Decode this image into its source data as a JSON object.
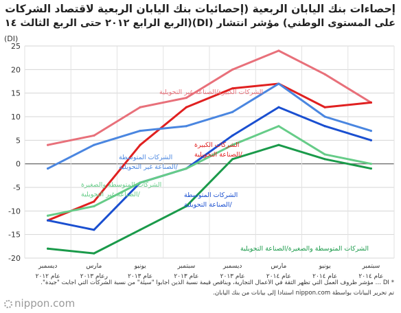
{
  "titles": {
    "line1": "إحصاءات بنك اليابان الربعية (إحصائيات بنك اليابان الربعية لاقتصاد الشركات",
    "line2": "على المستوى الوطني) مؤشر انتشار (DI)(الربع الرابع ٢٠١٢ حتى الربع الثالث ٢٠١٤)"
  },
  "footnotes": {
    "note1": "* DI … مؤشر ظروف العمل التي تظهر الثقة في الأعمال التجارية، وبناقص قيمة نسبة الذين أجابوا \"سيئة\" من نسبة الشركات التي أجابت \"جيدة\".",
    "note2": "تم تحرير البيانات بواسطة nippon.com استنادا إلى بيانات من بنك اليابان."
  },
  "logo": {
    "text": "nippon.com"
  },
  "chart_data": {
    "type": "line",
    "ylabel": "(DI)",
    "ylim": [
      -20,
      25
    ],
    "yticks": [
      -20,
      -15,
      -10,
      -5,
      0,
      5,
      10,
      15,
      20,
      25
    ],
    "grid": true,
    "categories": [
      {
        "month": "ديسمبر",
        "year": "عام ٢٠١٢"
      },
      {
        "month": "مارس",
        "year": "رعام ٢٠١٣"
      },
      {
        "month": "يونيو",
        "year": "عام ٢٠١٣"
      },
      {
        "month": "سبتمبر",
        "year": "عام ٢٠١٣"
      },
      {
        "month": "ديسمبر",
        "year": "عام ٢٠١٣"
      },
      {
        "month": "مارس",
        "year": "عام ٢٠١٤"
      },
      {
        "month": "يونيو",
        "year": "عام ٢٠١٤"
      },
      {
        "month": "سبتمبر",
        "year": "عام ٢٠١٤"
      }
    ],
    "series": [
      {
        "name": "الشركات الكبيرة/الصناعة غير التحويلية",
        "values": [
          4,
          6,
          12,
          14,
          20,
          24,
          19,
          13
        ],
        "color": "#e8707a",
        "label_lines": [
          "الشركات الكبيرة/الصناعة غير التحويلية"
        ]
      },
      {
        "name": "الشركات الكبيرة/الصناعة التحويلية",
        "values": [
          -12,
          -8,
          4,
          12,
          16,
          17,
          12,
          13
        ],
        "color": "#e02020",
        "label_lines": [
          "الشركات الكبيرة",
          "/الصناعة التحويلية"
        ]
      },
      {
        "name": "الشركات المتوسطة/الصناعة غير التحويلية",
        "values": [
          -1,
          4,
          7,
          8,
          11,
          17,
          10,
          7
        ],
        "color": "#4a86e0",
        "label_lines": [
          "الشركات المتوسطة",
          "/الصناعة غير التحويلية"
        ]
      },
      {
        "name": "الشركات المتوسطة/الصناعة التحويلية",
        "values": [
          -12,
          -14,
          -4,
          -1,
          6,
          12,
          8,
          5
        ],
        "color": "#1a4fd0",
        "label_lines": [
          "الشركات المتوسطة",
          "/الصناعة التحويلية"
        ]
      },
      {
        "name": "الشركات المتوسطة والصغيرة/الصناعة غير التحويلية",
        "values": [
          -11,
          -9,
          -4,
          -1,
          4,
          8,
          2,
          0
        ],
        "color": "#66cc88",
        "label_lines": [
          "الشركات المتوسطة والصغيرة",
          "/الصناعة غير التحويلية"
        ]
      },
      {
        "name": "الشركات المتوسطة والصغيرة/الصناعة التحويلية",
        "values": [
          -18,
          -19,
          -14,
          -9,
          1,
          4,
          1,
          -1
        ],
        "color": "#1a9a4a",
        "label_lines": [
          "الشركات المتوسطة والصغيرة/الصناعة التحويلية"
        ]
      }
    ]
  }
}
